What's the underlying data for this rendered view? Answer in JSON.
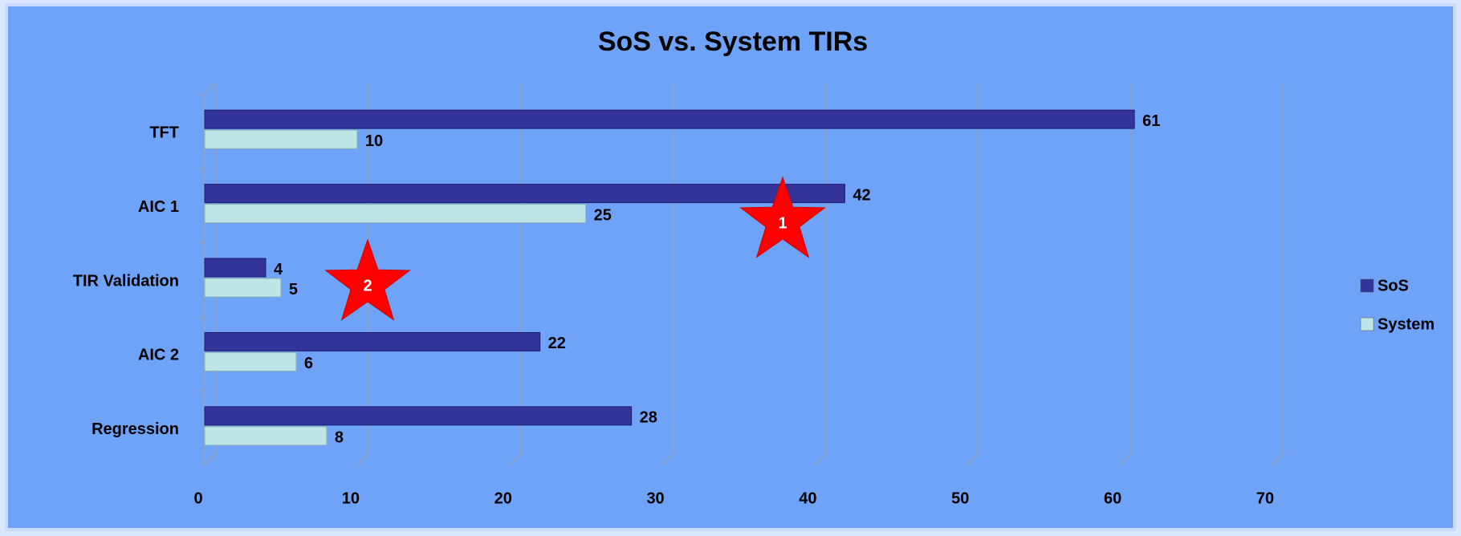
{
  "chart_data": {
    "type": "hbar",
    "title": "SoS vs. System TIRs",
    "categories": [
      "TFT",
      "AIC 1",
      "TIR Validation",
      "AIC 2",
      "Regression"
    ],
    "series": [
      {
        "name": "SoS",
        "color": "#333399",
        "values": [
          61,
          42,
          4,
          22,
          28
        ]
      },
      {
        "name": "System",
        "color": "#bfe6e6",
        "values": [
          10,
          25,
          5,
          6,
          8
        ]
      }
    ],
    "xlim": [
      0,
      70
    ],
    "xticks": [
      0,
      10,
      20,
      30,
      40,
      50,
      60,
      70
    ],
    "grid": true,
    "legend": "right",
    "annotations": [
      {
        "text": "1"
      },
      {
        "text": "2"
      }
    ]
  }
}
